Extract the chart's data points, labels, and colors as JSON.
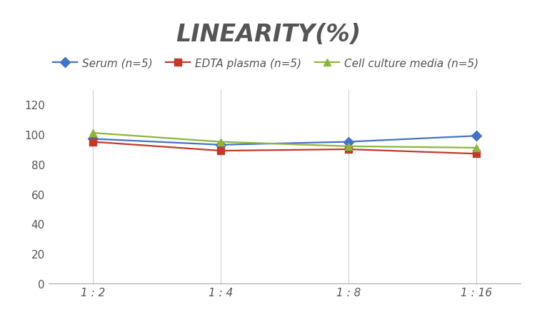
{
  "title": "LINEARITY(%)",
  "x_labels": [
    "1 : 2",
    "1 : 4",
    "1 : 8",
    "1 : 16"
  ],
  "x_positions": [
    0,
    1,
    2,
    3
  ],
  "series": [
    {
      "label": "Serum (n=5)",
      "values": [
        97,
        93,
        95,
        99
      ],
      "color": "#4472C4",
      "marker": "D",
      "linewidth": 1.6
    },
    {
      "label": "EDTA plasma (n=5)",
      "values": [
        95,
        89,
        90,
        87
      ],
      "color": "#C0392B",
      "marker": "s",
      "linewidth": 1.6
    },
    {
      "label": "Cell culture media (n=5)",
      "values": [
        101,
        95,
        92,
        91
      ],
      "color": "#8DB53C",
      "marker": "^",
      "linewidth": 1.6
    }
  ],
  "ylim": [
    0,
    130
  ],
  "yticks": [
    0,
    20,
    40,
    60,
    80,
    100,
    120
  ],
  "grid_color": "#D0D0D0",
  "bg_color": "#FFFFFF",
  "title_fontsize": 24,
  "legend_fontsize": 11,
  "tick_fontsize": 11,
  "axis_color": "#AAAAAA"
}
